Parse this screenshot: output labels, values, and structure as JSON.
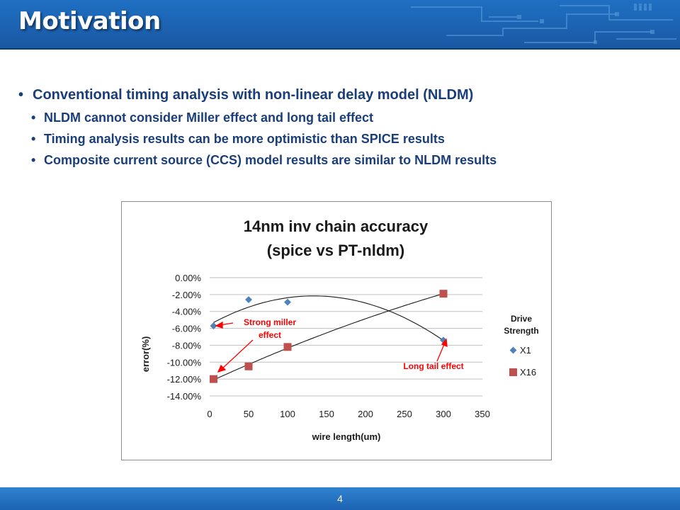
{
  "slide": {
    "title": "Motivation",
    "page_number": "4"
  },
  "bullets": {
    "main": "Conventional timing analysis with non-linear delay model (NLDM)",
    "sub": [
      "NLDM cannot consider Miller effect and long tail effect",
      "Timing analysis results can be more optimistic than SPICE results",
      "Composite current source (CCS) model results are similar to NLDM results"
    ]
  },
  "colors": {
    "header": "#1c63b2",
    "text": "#1a3e7a",
    "x1": "#4f81bd",
    "x16": "#c0504d",
    "annotation": "#ff0000"
  },
  "chart_data": {
    "type": "scatter",
    "title_line1": "14nm inv chain accuracy",
    "title_line2": "(spice vs PT-nldm)",
    "xlabel": "wire length(um)",
    "ylabel": "error(%)",
    "xlim": [
      0,
      350
    ],
    "ylim": [
      -14,
      0
    ],
    "x_ticks": [
      "0",
      "50",
      "100",
      "150",
      "200",
      "250",
      "300",
      "350"
    ],
    "y_ticks": [
      "0.00%",
      "-2.00%",
      "-4.00%",
      "-6.00%",
      "-8.00%",
      "-10.00%",
      "-12.00%",
      "-14.00%"
    ],
    "legend_title_line1": "Drive",
    "legend_title_line2": "Strength",
    "legend_position": "right",
    "grid": true,
    "series": [
      {
        "name": "X1",
        "marker": "diamond",
        "color": "#4f81bd",
        "x": [
          5,
          50,
          100,
          300
        ],
        "y": [
          -5.7,
          -2.6,
          -2.9,
          -7.4
        ]
      },
      {
        "name": "X16",
        "marker": "square",
        "color": "#c0504d",
        "x": [
          5,
          50,
          100,
          300
        ],
        "y": [
          -12.0,
          -10.5,
          -8.2,
          -1.9
        ]
      }
    ],
    "annotations": [
      {
        "line1": "Strong miller",
        "line2": "effect"
      },
      {
        "line1": "Long tail effect"
      }
    ]
  }
}
